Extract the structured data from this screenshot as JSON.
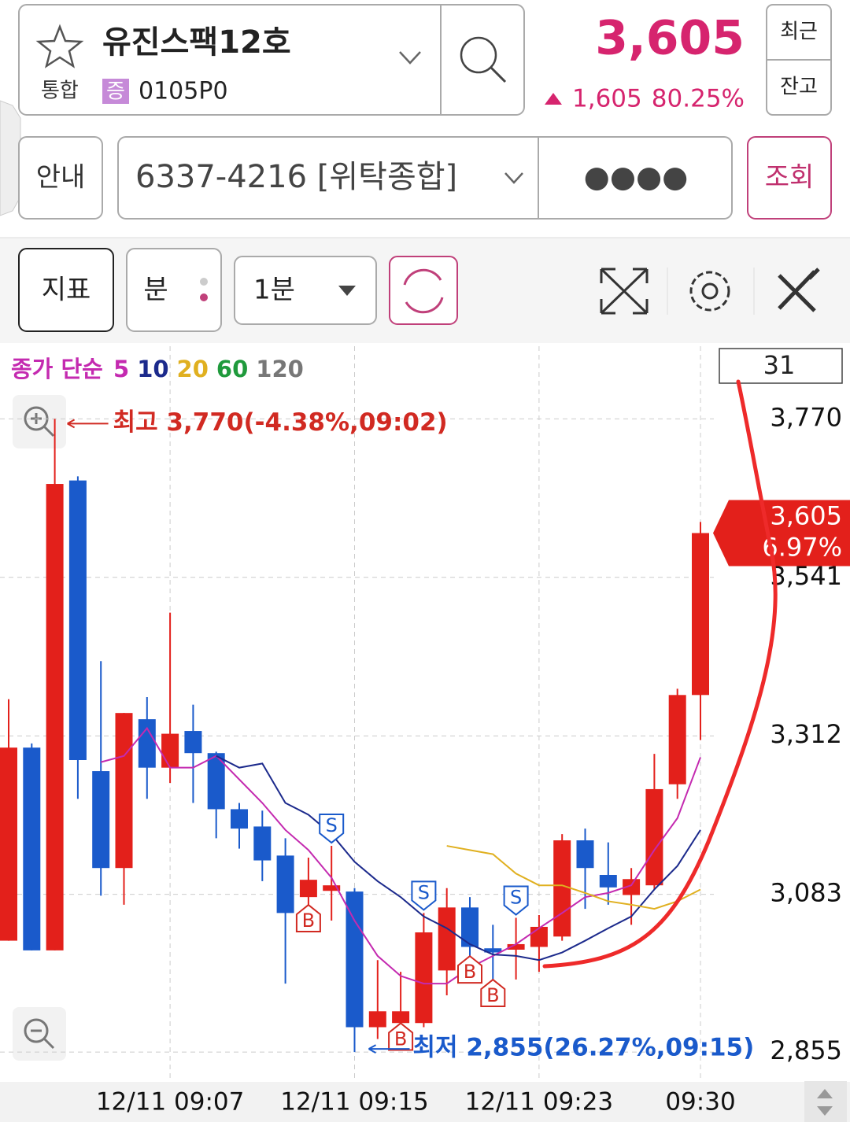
{
  "header": {
    "name": "유진스팩12호",
    "market": "통합",
    "badge": "증",
    "code": "0105P0",
    "price": "3,605",
    "change": "1,605",
    "change_rate": "80.25%",
    "recent": "최근",
    "balance": "잔고"
  },
  "account": {
    "guide": "안내",
    "number": "6337-4216 [위탁종합]",
    "password": "●●●●",
    "query": "조회"
  },
  "toolbar": {
    "indicator": "지표",
    "unit": "분",
    "interval": "1분"
  },
  "chart_data": {
    "type": "candlestick",
    "legend_title": "종가 단순",
    "period": "31",
    "high_label": "최고 3,770(-4.38%,09:02)",
    "low_label": "최저 2,855(26.27%,09:15)",
    "last_label": "3,605",
    "last_change": "6.97%",
    "categories": [
      null,
      null,
      null,
      null,
      null,
      null,
      null,
      "12/11 09:07",
      null,
      null,
      null,
      null,
      null,
      null,
      null,
      "12/11 09:15",
      null,
      null,
      null,
      null,
      null,
      null,
      null,
      "12/11 09:23",
      null,
      null,
      null,
      null,
      null,
      null,
      "09:30"
    ],
    "open": [
      3016,
      3295,
      3002,
      3681,
      3261,
      3121,
      3336,
      3266,
      3319,
      3287,
      3206,
      3181,
      3139,
      3079,
      3088,
      3087,
      2891,
      2897,
      2897,
      2973,
      3064,
      3005,
      3003,
      3007,
      3022,
      3161,
      3111,
      3082,
      3096,
      3242,
      3371
    ],
    "high": [
      3365,
      3301,
      3770,
      3687,
      3420,
      3345,
      3368,
      3490,
      3357,
      3289,
      3215,
      3204,
      3164,
      3136,
      3153,
      3092,
      2988,
      2971,
      3056,
      3092,
      3079,
      3039,
      3049,
      3053,
      3170,
      3178,
      3158,
      3121,
      3286,
      3380,
      3621
    ],
    "low": [
      3016,
      3002,
      3002,
      3221,
      3081,
      3068,
      3221,
      3244,
      3215,
      3164,
      3149,
      3102,
      2954,
      3045,
      3045,
      2855,
      2874,
      2874,
      2891,
      2937,
      2971,
      2937,
      2960,
      2971,
      3016,
      3062,
      3068,
      3039,
      3090,
      3221,
      3306
    ],
    "close": [
      3295,
      3002,
      3676,
      3277,
      3121,
      3345,
      3266,
      3315,
      3287,
      3206,
      3178,
      3132,
      3056,
      3104,
      3096,
      2891,
      2914,
      2914,
      3028,
      3064,
      3007,
      2999,
      3011,
      3036,
      3161,
      3121,
      3093,
      3105,
      3235,
      3371,
      3605
    ],
    "up_color": "#e3201b",
    "down_color": "#1a5acb",
    "signals": [
      null,
      null,
      null,
      null,
      null,
      null,
      null,
      null,
      null,
      null,
      null,
      null,
      null,
      "B",
      "S",
      null,
      null,
      "B",
      "S",
      null,
      "B",
      "B",
      "S",
      null,
      null,
      null,
      null,
      null,
      null,
      null,
      null
    ],
    "series": [
      {
        "name": "5",
        "color": "#c42ab0",
        "values": [
          null,
          null,
          null,
          null,
          3274,
          3283,
          3323,
          3266,
          3266,
          3283,
          3249,
          3215,
          3176,
          3147,
          3107,
          3045,
          2994,
          2965,
          2954,
          2954,
          2977,
          2994,
          3011,
          3034,
          3056,
          3079,
          3085,
          3096,
          3147,
          3193,
          3281
        ]
      },
      {
        "name": "10",
        "color": "#1c2a8c",
        "values": [
          null,
          null,
          null,
          null,
          null,
          null,
          null,
          null,
          null,
          3283,
          3266,
          3272,
          3215,
          3198,
          3170,
          3130,
          3102,
          3079,
          3051,
          3034,
          3011,
          2996,
          2994,
          2988,
          2999,
          3016,
          3034,
          3051,
          3090,
          3124,
          3176
        ]
      },
      {
        "name": "20",
        "color": "#e0b020",
        "values": [
          null,
          null,
          null,
          null,
          null,
          null,
          null,
          null,
          null,
          null,
          null,
          null,
          null,
          null,
          null,
          null,
          null,
          null,
          null,
          3153,
          3147,
          3141,
          3113,
          3096,
          3096,
          3085,
          3073,
          3068,
          3062,
          3073,
          3090
        ]
      },
      {
        "name": "60",
        "color": "#1f9a3c",
        "values": [
          null,
          null,
          null,
          null,
          null,
          null,
          null,
          null,
          null,
          null,
          null,
          null,
          null,
          null,
          null,
          null,
          null,
          null,
          null,
          null,
          null,
          null,
          null,
          null,
          null,
          null,
          null,
          null,
          null,
          null,
          null
        ]
      },
      {
        "name": "120",
        "color": "#777777",
        "values": [
          null,
          null,
          null,
          null,
          null,
          null,
          null,
          null,
          null,
          null,
          null,
          null,
          null,
          null,
          null,
          null,
          null,
          null,
          null,
          null,
          null,
          null,
          null,
          null,
          null,
          null,
          null,
          null,
          null,
          null,
          null
        ]
      }
    ],
    "ylim": [
      2812,
      3875
    ],
    "yticks": [
      {
        "value": 2855,
        "label": "2,855"
      },
      {
        "value": 3083,
        "label": "3,083"
      },
      {
        "value": 3312,
        "label": "3,312"
      },
      {
        "value": 3541,
        "label": "3,541"
      },
      {
        "value": 3770,
        "label": "3,770"
      }
    ],
    "grid": true
  }
}
